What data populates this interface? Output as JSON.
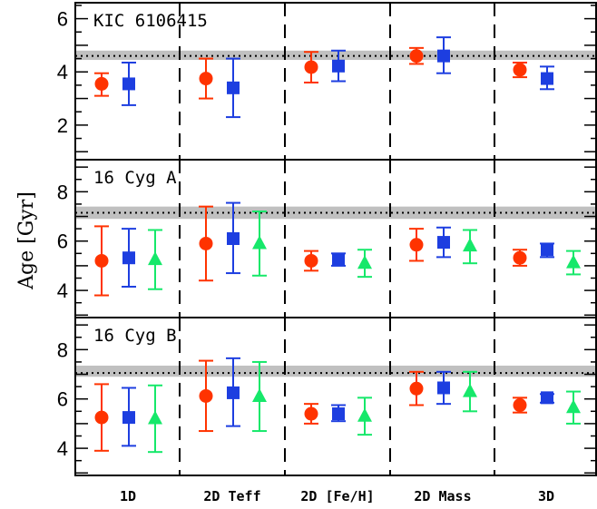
{
  "chart_data": {
    "type": "scatter",
    "ylabel": "Age [Gyr]",
    "categories": [
      "1D",
      "2D Teff",
      "2D [Fe/H]",
      "2D Mass",
      "3D"
    ],
    "colors": {
      "red": "#ff3300",
      "blue": "#1d3ee0",
      "green": "#16e86a",
      "band": "#c0c0c0"
    },
    "panels": [
      {
        "label": "KIC 6106415",
        "ylim": [
          0.7,
          6.6
        ],
        "yticks": [
          2,
          4,
          6
        ],
        "reference": {
          "value": 4.6,
          "band": [
            4.45,
            4.8
          ]
        },
        "series": [
          {
            "marker": "circle",
            "color": "red",
            "values": [
              3.55,
              3.75,
              4.18,
              4.6,
              4.08
            ],
            "low": [
              3.1,
              3.0,
              3.6,
              4.3,
              3.8
            ],
            "high": [
              3.95,
              4.5,
              4.75,
              4.9,
              4.35
            ]
          },
          {
            "marker": "square",
            "color": "blue",
            "values": [
              3.55,
              3.4,
              4.22,
              4.6,
              3.75
            ],
            "low": [
              2.75,
              2.3,
              3.65,
              3.95,
              3.35
            ],
            "high": [
              4.35,
              4.5,
              4.8,
              5.3,
              4.2
            ]
          }
        ]
      },
      {
        "label": "16 Cyg A",
        "ylim": [
          2.9,
          9.3
        ],
        "yticks": [
          4,
          6,
          8
        ],
        "reference": {
          "value": 7.15,
          "band": [
            6.9,
            7.4
          ]
        },
        "series": [
          {
            "marker": "circle",
            "color": "red",
            "values": [
              5.2,
              5.9,
              5.2,
              5.85,
              5.32
            ],
            "low": [
              3.8,
              4.4,
              4.8,
              5.2,
              5.0
            ],
            "high": [
              6.6,
              7.4,
              5.6,
              6.5,
              5.65
            ]
          },
          {
            "marker": "square",
            "color": "blue",
            "values": [
              5.32,
              6.1,
              5.25,
              5.95,
              5.65
            ],
            "low": [
              4.15,
              4.7,
              5.0,
              5.35,
              5.35
            ],
            "high": [
              6.5,
              7.55,
              5.5,
              6.55,
              5.9
            ]
          },
          {
            "marker": "triangle",
            "color": "green",
            "values": [
              5.25,
              5.9,
              5.1,
              5.8,
              5.12
            ],
            "low": [
              4.05,
              4.6,
              4.55,
              5.1,
              4.65
            ],
            "high": [
              6.45,
              7.2,
              5.65,
              6.45,
              5.6
            ]
          }
        ]
      },
      {
        "label": "16 Cyg B",
        "ylim": [
          2.9,
          9.3
        ],
        "yticks": [
          4,
          6,
          8
        ],
        "reference": {
          "value": 7.05,
          "band": [
            6.9,
            7.35
          ]
        },
        "series": [
          {
            "marker": "circle",
            "color": "red",
            "values": [
              5.25,
              6.12,
              5.4,
              6.42,
              5.75
            ],
            "low": [
              3.9,
              4.7,
              5.0,
              5.75,
              5.45
            ],
            "high": [
              6.6,
              7.55,
              5.8,
              7.1,
              6.05
            ]
          },
          {
            "marker": "square",
            "color": "blue",
            "values": [
              5.25,
              6.25,
              5.4,
              6.45,
              6.05
            ],
            "low": [
              4.1,
              4.9,
              5.1,
              5.8,
              5.85
            ],
            "high": [
              6.45,
              7.65,
              5.75,
              7.1,
              6.2
            ]
          },
          {
            "marker": "triangle",
            "color": "green",
            "values": [
              5.2,
              6.1,
              5.3,
              6.3,
              5.65
            ],
            "low": [
              3.85,
              4.7,
              4.55,
              5.5,
              5.0
            ],
            "high": [
              6.55,
              7.5,
              6.05,
              7.1,
              6.3
            ]
          }
        ]
      }
    ]
  }
}
